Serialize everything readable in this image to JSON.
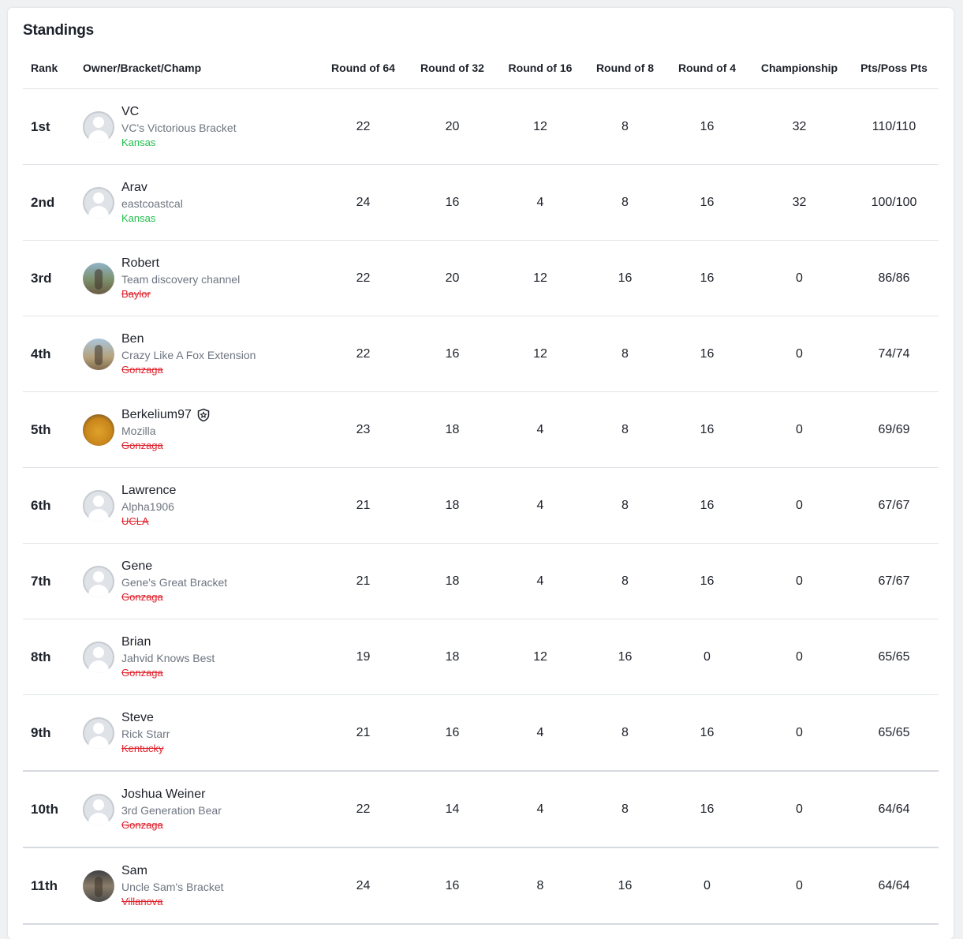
{
  "title": "Standings",
  "columns": {
    "rank": "Rank",
    "owner": "Owner/Bracket/Champ",
    "r64": "Round of 64",
    "r32": "Round of 32",
    "r16": "Round of 16",
    "r8": "Round of 8",
    "r4": "Round of 4",
    "championship": "Championship",
    "pts": "Pts/Poss Pts"
  },
  "rows": [
    {
      "rank": "1st",
      "owner": "VC",
      "bracket": "VC's Victorious Bracket",
      "champ": "Kansas",
      "champ_status": "alive",
      "avatar": "default-avatar-icon",
      "r64": "22",
      "r32": "20",
      "r16": "12",
      "r8": "8",
      "r4": "16",
      "championship": "32",
      "pts": "110/110"
    },
    {
      "rank": "2nd",
      "owner": "Arav",
      "bracket": "eastcoastcal",
      "champ": "Kansas",
      "champ_status": "alive",
      "avatar": "default-avatar-icon",
      "r64": "24",
      "r32": "16",
      "r16": "4",
      "r8": "8",
      "r4": "16",
      "championship": "32",
      "pts": "100/100"
    },
    {
      "rank": "3rd",
      "owner": "Robert",
      "bracket": "Team discovery channel",
      "champ": "Baylor",
      "champ_status": "eliminated",
      "avatar": "photo",
      "r64": "22",
      "r32": "20",
      "r16": "12",
      "r8": "16",
      "r4": "16",
      "championship": "0",
      "pts": "86/86"
    },
    {
      "rank": "4th",
      "owner": "Ben",
      "bracket": "Crazy Like A Fox Extension",
      "champ": "Gonzaga",
      "champ_status": "eliminated",
      "avatar": "photo",
      "r64": "22",
      "r32": "16",
      "r16": "12",
      "r8": "8",
      "r4": "16",
      "championship": "0",
      "pts": "74/74"
    },
    {
      "rank": "5th",
      "owner": "Berkelium97",
      "bracket": "Mozilla",
      "champ": "Gonzaga",
      "champ_status": "eliminated",
      "avatar": "photo",
      "badge": "commissioner-badge-icon",
      "r64": "23",
      "r32": "18",
      "r16": "4",
      "r8": "8",
      "r4": "16",
      "championship": "0",
      "pts": "69/69"
    },
    {
      "rank": "6th",
      "owner": "Lawrence",
      "bracket": "Alpha1906",
      "champ": "UCLA",
      "champ_status": "eliminated",
      "avatar": "default-avatar-icon",
      "r64": "21",
      "r32": "18",
      "r16": "4",
      "r8": "8",
      "r4": "16",
      "championship": "0",
      "pts": "67/67"
    },
    {
      "rank": "7th",
      "owner": "Gene",
      "bracket": "Gene's Great Bracket",
      "champ": "Gonzaga",
      "champ_status": "eliminated",
      "avatar": "default-avatar-icon",
      "r64": "21",
      "r32": "18",
      "r16": "4",
      "r8": "8",
      "r4": "16",
      "championship": "0",
      "pts": "67/67"
    },
    {
      "rank": "8th",
      "owner": "Brian",
      "bracket": "Jahvid Knows Best",
      "champ": "Gonzaga",
      "champ_status": "eliminated",
      "avatar": "default-avatar-icon",
      "r64": "19",
      "r32": "18",
      "r16": "12",
      "r8": "16",
      "r4": "0",
      "championship": "0",
      "pts": "65/65"
    },
    {
      "rank": "9th",
      "owner": "Steve",
      "bracket": "Rick Starr",
      "champ": "Kentucky",
      "champ_status": "eliminated",
      "avatar": "default-avatar-icon",
      "r64": "21",
      "r32": "16",
      "r16": "4",
      "r8": "8",
      "r4": "16",
      "championship": "0",
      "pts": "65/65"
    },
    {
      "rank": "10th",
      "owner": "Joshua Weiner",
      "bracket": "3rd Generation Bear",
      "champ": "Gonzaga",
      "champ_status": "eliminated",
      "avatar": "default-avatar-icon",
      "r64": "22",
      "r32": "14",
      "r16": "4",
      "r8": "8",
      "r4": "16",
      "championship": "0",
      "pts": "64/64"
    },
    {
      "rank": "11th",
      "owner": "Sam",
      "bracket": "Uncle Sam's Bracket",
      "champ": "Villanova",
      "champ_status": "eliminated",
      "avatar": "photo",
      "r64": "24",
      "r32": "16",
      "r16": "8",
      "r8": "16",
      "r4": "0",
      "championship": "0",
      "pts": "64/64"
    }
  ],
  "colors": {
    "alive": "#1fbf4a",
    "eliminated": "#e0242f",
    "text": "#1d2129",
    "secondary": "#6e7580",
    "divider": "#e0e4e9"
  }
}
